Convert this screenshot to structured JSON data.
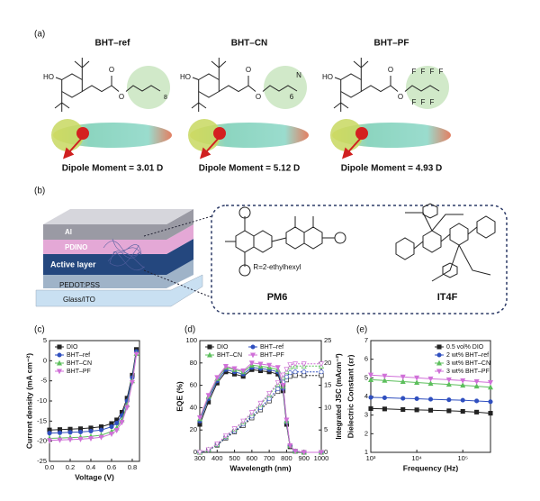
{
  "panel_labels": [
    "(a)",
    "(b)",
    "(c)",
    "(d)",
    "(e)"
  ],
  "molecules": [
    {
      "name": "BHT–ref",
      "dipole": "Dipole Moment = 3.01 D",
      "atoms": [
        "HO",
        "O",
        "O",
        "8"
      ]
    },
    {
      "name": "BHT–CN",
      "dipole": "Dipole Moment = 5.12 D",
      "atoms": [
        "HO",
        "O",
        "O",
        "N",
        "6"
      ]
    },
    {
      "name": "BHT–PF",
      "dipole": "Dipole Moment = 4.93 D",
      "atoms": [
        "HO",
        "O",
        "O",
        "F",
        "F",
        "F",
        "F",
        "F",
        "F",
        "F"
      ]
    }
  ],
  "device": {
    "layers": [
      "Al",
      "PDINO",
      "Active layer",
      "PEDOT:PSS",
      "Glass/ITO"
    ],
    "donor": "PM6",
    "acceptor": "IT4F",
    "side_chain": "R=2-ethylhexyl"
  },
  "chart_data": [
    {
      "type": "line",
      "x_label": "Voltage (V)",
      "y_label": "Current density (mA cm⁻²)",
      "x": [
        0,
        0.1,
        0.2,
        0.3,
        0.4,
        0.5,
        0.6,
        0.65,
        0.7,
        0.75,
        0.8,
        0.84
      ],
      "xlim": [
        0,
        0.87
      ],
      "xticks": [
        {
          "value": 0,
          "label": "0.0"
        },
        0.2,
        0.4,
        0.6,
        0.8
      ],
      "ylim": [
        -25,
        5
      ],
      "yticks": [
        -25,
        -20,
        -15,
        -10,
        -5,
        0,
        5
      ],
      "legend": "upper left",
      "legend_columns": 1,
      "series": [
        {
          "name": "DIO",
          "color": "#222222",
          "marker": "square",
          "values": [
            -17.2,
            -17.1,
            -17.0,
            -16.9,
            -16.7,
            -16.4,
            -15.6,
            -14.7,
            -12.8,
            -9.3,
            -3.6,
            2.8
          ]
        },
        {
          "name": "BHT–ref",
          "color": "#2f4fbf",
          "marker": "circle",
          "values": [
            -18.0,
            -17.9,
            -17.8,
            -17.7,
            -17.5,
            -17.2,
            -16.4,
            -15.5,
            -13.6,
            -10.0,
            -4.2,
            2.3
          ]
        },
        {
          "name": "BHT–CN",
          "color": "#5cbf5c",
          "marker": "triangle",
          "values": [
            -19.3,
            -19.2,
            -19.1,
            -19.0,
            -18.8,
            -18.5,
            -17.6,
            -16.7,
            -14.7,
            -11.0,
            -5.0,
            1.8
          ]
        },
        {
          "name": "BHT–PF",
          "color": "#d070d8",
          "marker": "triangle-down",
          "values": [
            -19.8,
            -19.7,
            -19.6,
            -19.5,
            -19.3,
            -19.0,
            -18.2,
            -17.3,
            -15.3,
            -11.6,
            -5.4,
            1.6
          ]
        }
      ]
    },
    {
      "type": "line",
      "x_label": "Wavelength (nm)",
      "y_label": "EQE (%)",
      "y2_label": "Integrated JSC (mAcm⁻²)",
      "x": [
        300,
        350,
        400,
        450,
        500,
        550,
        600,
        650,
        700,
        750,
        780,
        800,
        820,
        850,
        900,
        1000
      ],
      "xlim": [
        300,
        1000
      ],
      "xticks": [
        300,
        400,
        500,
        600,
        700,
        800,
        900,
        1000
      ],
      "ylim": [
        0,
        100
      ],
      "yticks": [
        0,
        20,
        40,
        60,
        80,
        100
      ],
      "y2lim": [
        0,
        25
      ],
      "y2ticks": [
        0,
        5,
        10,
        15,
        20,
        25
      ],
      "legend": "upper left",
      "legend_columns": 2,
      "series": [
        {
          "name": "DIO",
          "color": "#222222",
          "marker": "square",
          "values": [
            25,
            45,
            62,
            72,
            70,
            68,
            74,
            73,
            72,
            70,
            55,
            25,
            5,
            1,
            0,
            0
          ],
          "y2_values": [
            0,
            0.5,
            1.6,
            3.2,
            4.6,
            6.0,
            7.7,
            9.5,
            11.5,
            13.6,
            15.0,
            16.2,
            17.0,
            17.2,
            17.2,
            17.2
          ]
        },
        {
          "name": "BHT–ref",
          "color": "#2f4fbf",
          "marker": "circle",
          "values": [
            28,
            48,
            64,
            74,
            72,
            70,
            76,
            75,
            74,
            72,
            57,
            27,
            6,
            1,
            0,
            0
          ],
          "y2_values": [
            0,
            0.5,
            1.7,
            3.4,
            4.8,
            6.3,
            8.1,
            10.0,
            12.0,
            14.2,
            15.7,
            16.9,
            17.8,
            18.0,
            18.0,
            18.0
          ]
        },
        {
          "name": "BHT–CN",
          "color": "#5cbf5c",
          "marker": "triangle",
          "values": [
            30,
            50,
            66,
            76,
            74,
            72,
            78,
            77,
            76,
            74,
            59,
            28,
            6,
            1,
            0,
            0
          ],
          "y2_values": [
            0,
            0.6,
            1.8,
            3.6,
            5.2,
            6.8,
            8.7,
            10.7,
            12.9,
            15.2,
            16.8,
            18.1,
            19.1,
            19.3,
            19.3,
            19.3
          ]
        },
        {
          "name": "BHT–PF",
          "color": "#d070d8",
          "marker": "triangle-down",
          "values": [
            31,
            51,
            67,
            77,
            75,
            73,
            80,
            79,
            78,
            76,
            60,
            29,
            6,
            1,
            0,
            0
          ],
          "y2_values": [
            0,
            0.6,
            1.9,
            3.7,
            5.3,
            7.0,
            8.9,
            11.0,
            13.2,
            15.6,
            17.3,
            18.6,
            19.6,
            19.8,
            19.8,
            19.8
          ]
        }
      ]
    },
    {
      "type": "line",
      "x_label": "Frequency (Hz)",
      "y_label": "Dielectric Constant (εr)",
      "xscale": "log",
      "x": [
        1000,
        2000,
        5000,
        10000,
        20000,
        50000,
        100000,
        200000,
        400000
      ],
      "xlim": [
        1000,
        400000
      ],
      "xticks": [
        {
          "value": 1000,
          "label": "10³"
        },
        {
          "value": 10000,
          "label": "10⁴"
        },
        {
          "value": 100000,
          "label": "10⁵"
        }
      ],
      "ylim": [
        1,
        7
      ],
      "yticks": [
        1,
        2,
        3,
        4,
        5,
        6,
        7
      ],
      "legend": "upper right",
      "legend_columns": 1,
      "series": [
        {
          "name": "0.5 vol% DIO",
          "color": "#222222",
          "marker": "square",
          "values": [
            3.35,
            3.33,
            3.3,
            3.28,
            3.26,
            3.23,
            3.2,
            3.16,
            3.1
          ]
        },
        {
          "name": "2 wt% BHT–ref",
          "color": "#2f4fbf",
          "marker": "circle",
          "values": [
            3.95,
            3.93,
            3.9,
            3.88,
            3.85,
            3.82,
            3.8,
            3.76,
            3.72
          ]
        },
        {
          "name": "3 wt% BHT–CN",
          "color": "#5cbf5c",
          "marker": "triangle",
          "values": [
            4.9,
            4.86,
            4.8,
            4.75,
            4.7,
            4.65,
            4.6,
            4.55,
            4.5
          ]
        },
        {
          "name": "3 wt% BHT–PF",
          "color": "#d070d8",
          "marker": "triangle-down",
          "values": [
            5.15,
            5.1,
            5.05,
            5.0,
            4.95,
            4.9,
            4.85,
            4.8,
            4.75
          ]
        }
      ]
    }
  ]
}
